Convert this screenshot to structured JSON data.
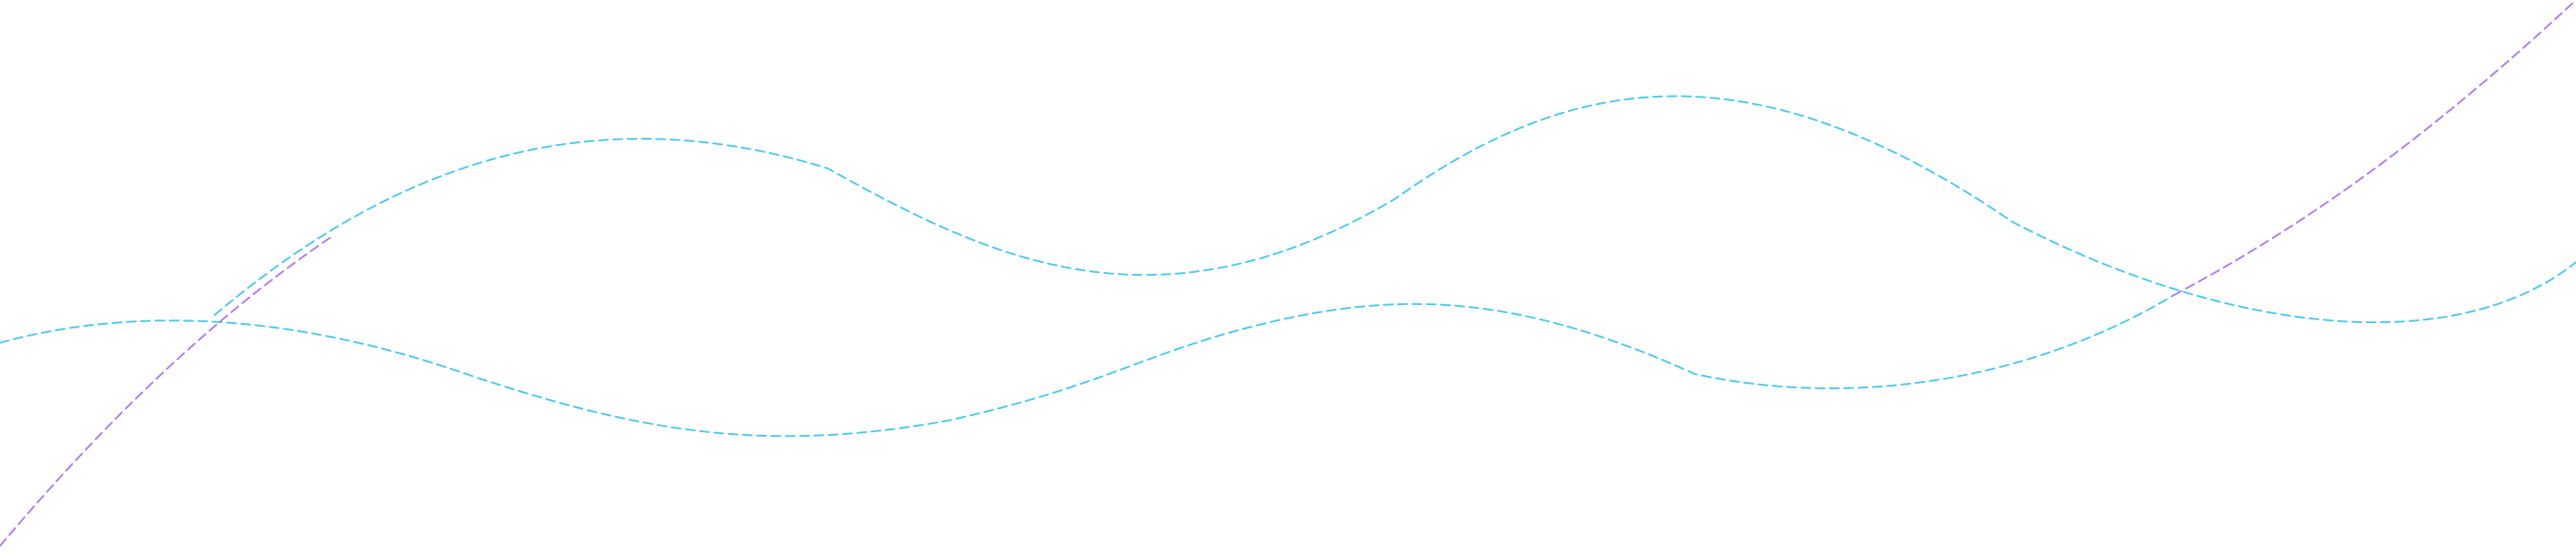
{
  "colors": {
    "background": "#ffffff",
    "wave_cyan": "#4cc9f0",
    "wave_purple": "#b07cf0"
  },
  "decor": {
    "style": "dashed-lines",
    "lines": [
      {
        "name": "upper-cyan-wave",
        "color": "#4cc9f0"
      },
      {
        "name": "lower-cyan-wave",
        "color": "#4cc9f0"
      },
      {
        "name": "purple-diagonal",
        "color": "#b07cf0"
      }
    ]
  }
}
